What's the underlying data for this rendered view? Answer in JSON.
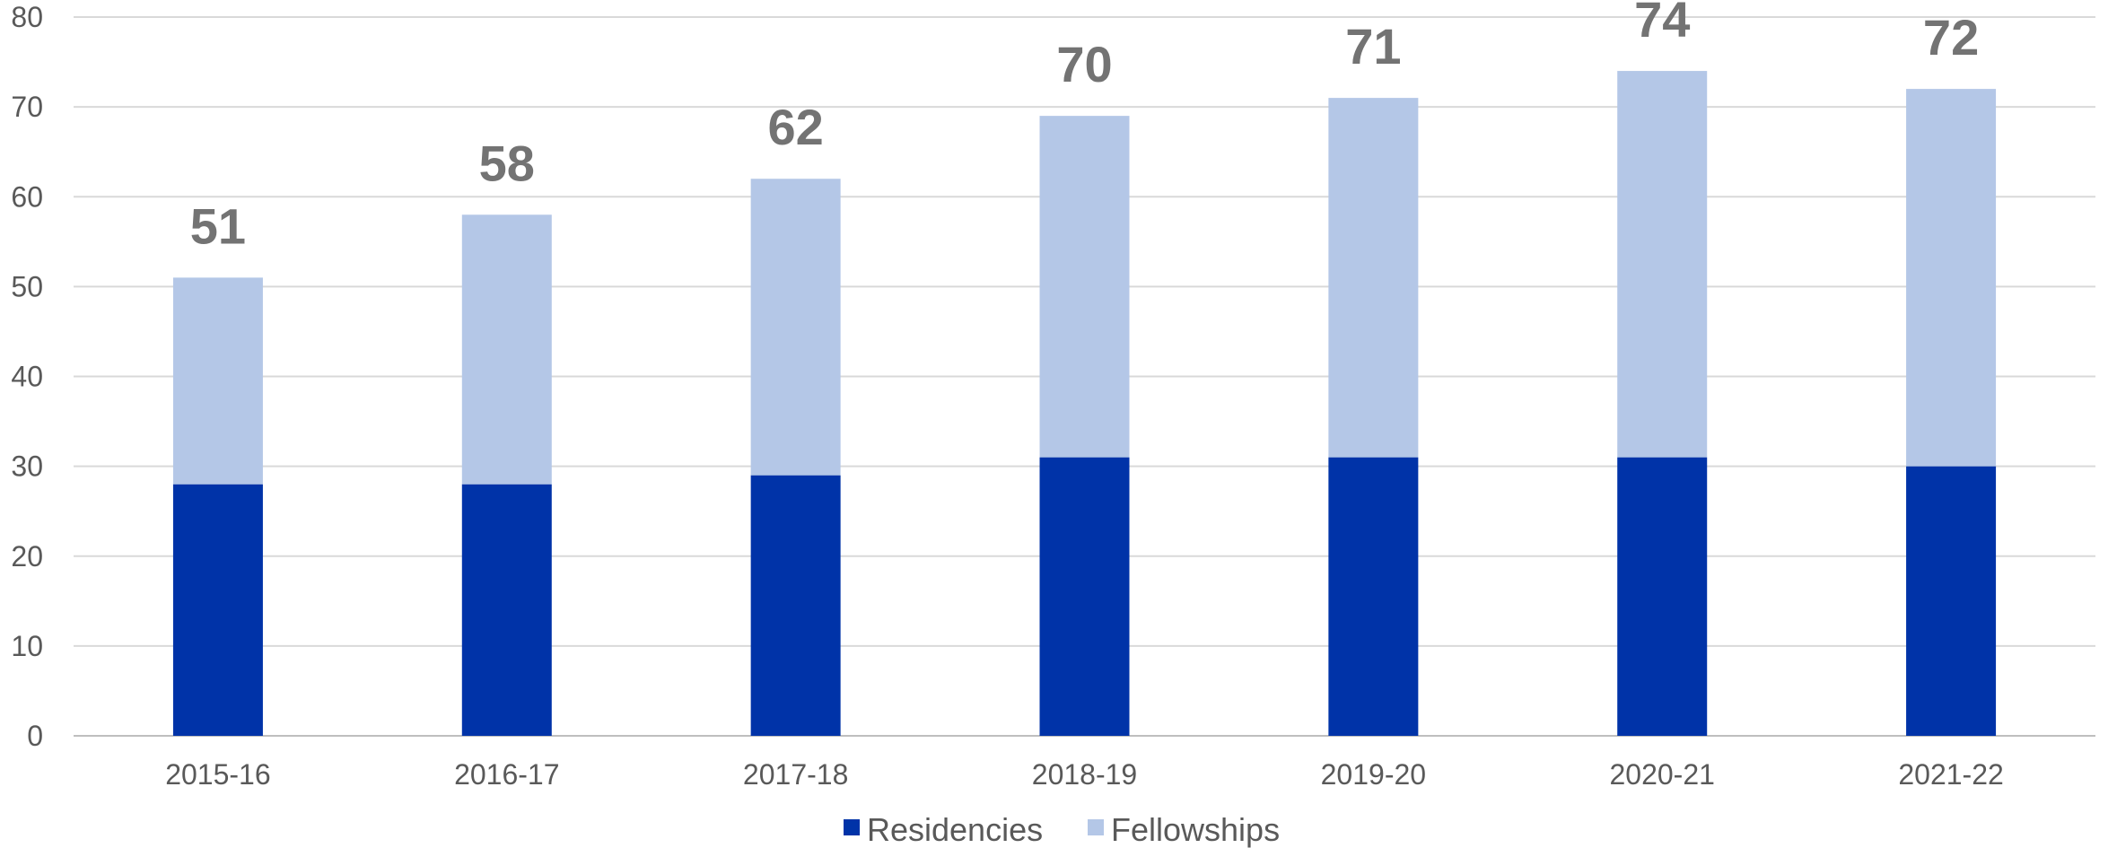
{
  "chart_data": {
    "type": "bar",
    "stacked": true,
    "categories": [
      "2015-16",
      "2016-17",
      "2017-18",
      "2018-19",
      "2019-20",
      "2020-21",
      "2021-22"
    ],
    "series": [
      {
        "name": "Residencies",
        "values": [
          28,
          28,
          29,
          31,
          31,
          31,
          30
        ],
        "color": "#0033A8"
      },
      {
        "name": "Fellowships",
        "values": [
          23,
          30,
          33,
          38,
          40,
          43,
          42
        ],
        "color": "#B4C7E7"
      }
    ],
    "totals": [
      "51",
      "58",
      "62",
      "70",
      "71",
      "74",
      "72"
    ],
    "ylim": [
      0,
      80
    ],
    "yticks": [
      "0",
      "10",
      "20",
      "30",
      "40",
      "50",
      "60",
      "70",
      "80"
    ],
    "grid": true,
    "legend_position": "bottom"
  }
}
